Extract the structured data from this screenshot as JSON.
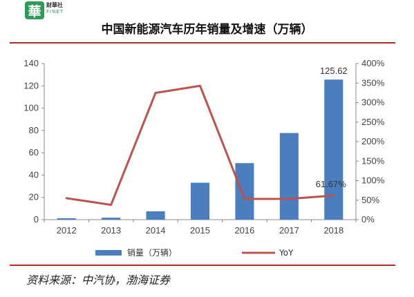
{
  "logo": {
    "mark": "華",
    "cn": "财華社",
    "en": "FINET"
  },
  "title": "中国新能源汽车历年销量及增速（万辆）",
  "source": "资料来源：中汽协，渤海证券",
  "colors": {
    "bar": "#4a7ebf",
    "line": "#c0504d",
    "rule": "#b02a2a"
  },
  "chart_data": {
    "type": "bar",
    "categories": [
      "2012",
      "2013",
      "2014",
      "2015",
      "2016",
      "2017",
      "2018"
    ],
    "series": [
      {
        "name": "销量（万辆）",
        "type": "bar",
        "axis": "left",
        "values": [
          1.28,
          1.76,
          7.48,
          33.11,
          50.7,
          77.7,
          125.62
        ]
      },
      {
        "name": "YoY",
        "type": "line",
        "axis": "right",
        "values": [
          55,
          37.9,
          324.8,
          342.9,
          53,
          53.3,
          61.67
        ]
      }
    ],
    "ylim_left": [
      0,
      140
    ],
    "yticks_left": [
      "0",
      "20",
      "40",
      "60",
      "80",
      "100",
      "120",
      "140"
    ],
    "ylim_right": [
      0,
      400
    ],
    "yticks_right": [
      "0%",
      "50%",
      "100%",
      "150%",
      "200%",
      "250%",
      "300%",
      "350%",
      "400%"
    ],
    "data_labels": {
      "bar_2018": "125.62",
      "yoy_2018": "61.67%"
    },
    "legend_position": "bottom"
  }
}
